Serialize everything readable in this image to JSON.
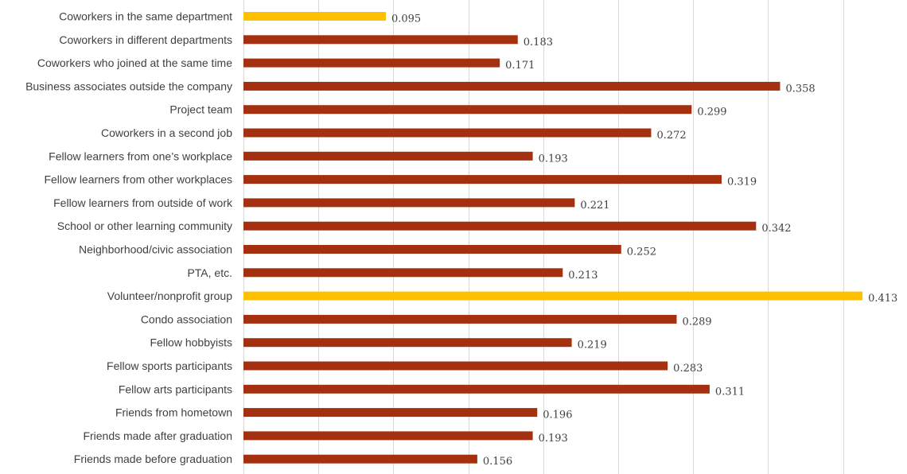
{
  "chart_data": {
    "type": "bar",
    "orientation": "horizontal",
    "categories": [
      "Coworkers in the same department",
      "Coworkers in different departments",
      "Coworkers who joined at the same time",
      "Business associates outside the company",
      "Project team",
      "Coworkers in a second job",
      "Fellow learners from one’s workplace",
      "Fellow learners from other workplaces",
      "Fellow learners from outside of work",
      "School or other learning community",
      "Neighborhood/civic association",
      "PTA, etc.",
      "Volunteer/nonprofit group",
      "Condo association",
      "Fellow hobbyists",
      "Fellow sports participants",
      "Fellow arts participants",
      "Friends from hometown",
      "Friends made after graduation",
      "Friends made before graduation"
    ],
    "values": [
      0.095,
      0.183,
      0.171,
      0.358,
      0.299,
      0.272,
      0.193,
      0.319,
      0.221,
      0.342,
      0.252,
      0.213,
      0.413,
      0.289,
      0.219,
      0.283,
      0.311,
      0.196,
      0.193,
      0.156
    ],
    "value_labels": [
      "0.095",
      "0.183",
      "0.171",
      "0.358",
      "0.299",
      "0.272",
      "0.193",
      "0.319",
      "0.221",
      "0.342",
      "0.252",
      "0.213",
      "0.413",
      "0.289",
      "0.219",
      "0.283",
      "0.311",
      "0.196",
      "0.193",
      "0.156"
    ],
    "highlighted": [
      0,
      12
    ],
    "colors": {
      "default": "#a5300f",
      "highlight": "#ffc000",
      "grid": "#d9d9d9",
      "text": "#404040"
    },
    "xlim": [
      0,
      0.44
    ],
    "grid_step": 0.05,
    "grid": true,
    "legend": "none",
    "title": "",
    "xlabel": "",
    "ylabel": ""
  }
}
